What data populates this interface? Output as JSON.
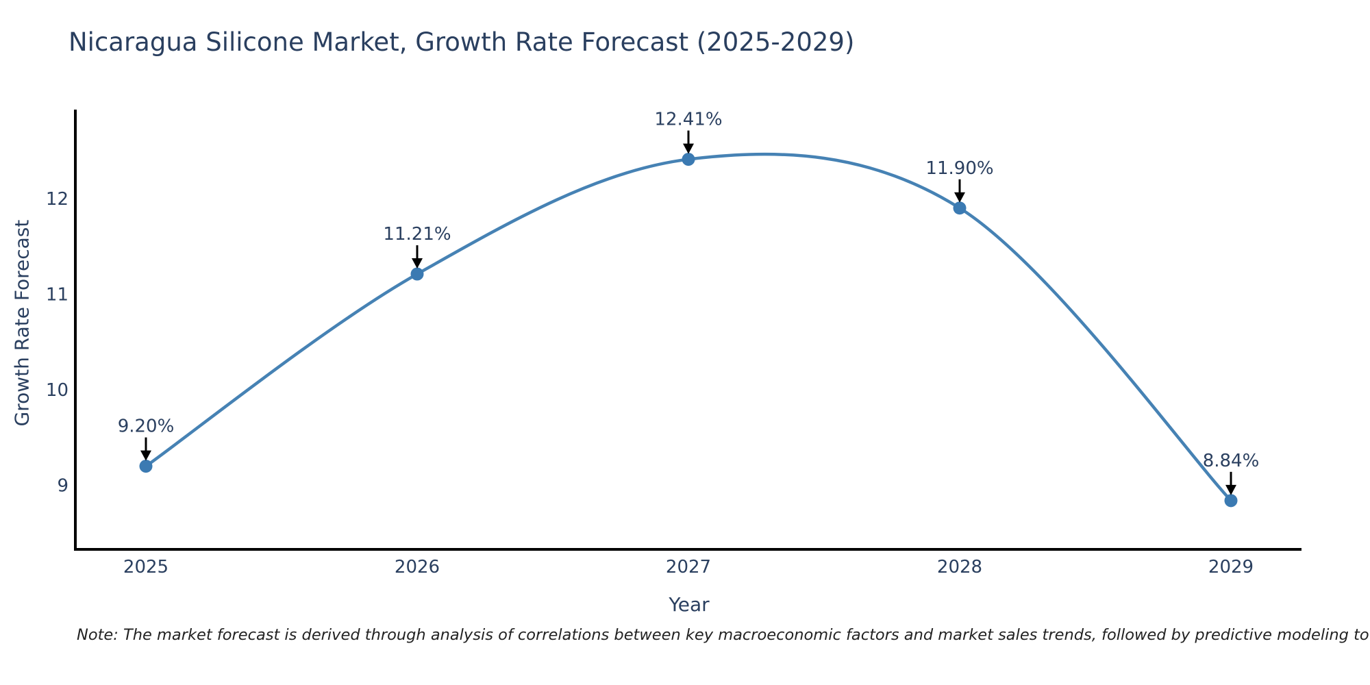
{
  "page": {
    "background": "#ffffff"
  },
  "chart_data": {
    "type": "line",
    "line_shape": "spline",
    "title": "Nicaragua Silicone Market, Growth Rate Forecast (2025-2029)",
    "xlabel": "Year",
    "ylabel": "Growth Rate Forecast",
    "x": [
      2025,
      2026,
      2027,
      2028,
      2029
    ],
    "xticklabels": [
      "2025",
      "2026",
      "2027",
      "2028",
      "2029"
    ],
    "series": [
      {
        "name": "Growth Rate Forecast",
        "values": [
          9.2,
          11.21,
          12.41,
          11.9,
          8.84
        ]
      }
    ],
    "point_labels": [
      "9.20%",
      "11.21%",
      "12.41%",
      "11.90%",
      "8.84%"
    ],
    "yticks": [
      9,
      10,
      11,
      12
    ],
    "ylim": [
      8.33,
      12.93
    ],
    "grid": false,
    "legend": "none",
    "annotation_style": "value above point with black down arrow",
    "note": "Note: The market forecast is derived through analysis of correlations between key macroeconomic factors and market sales trends, followed by predictive modeling to project future sales",
    "colors": {
      "line": "#4682b4",
      "marker": "#3b7ab2",
      "axis_line": "#000000",
      "title_text": "#2a3f5f",
      "tick_text": "#2a3f5f",
      "annotation_text": "#2a3f5f",
      "arrow": "#000000",
      "note_text": "#222222",
      "background": "#ffffff"
    }
  }
}
